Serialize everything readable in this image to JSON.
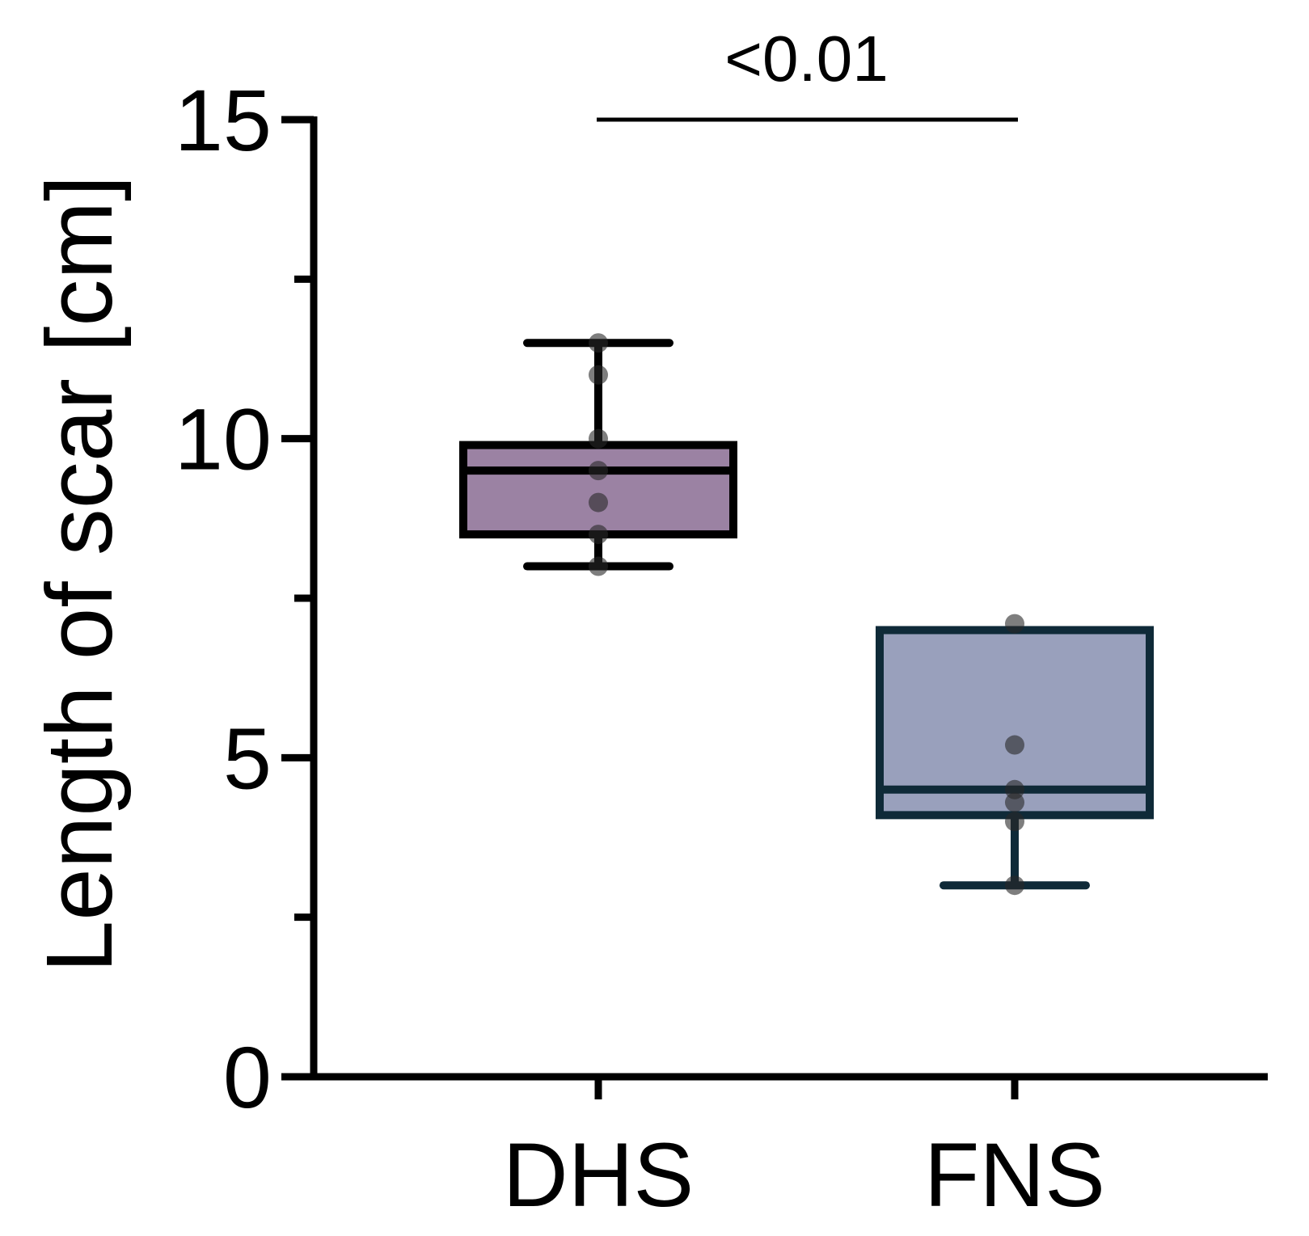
{
  "chart_data": {
    "type": "box",
    "ylabel": "Length of scar [cm]",
    "xlabel": "",
    "ylim": [
      0,
      15
    ],
    "y_ticks": [
      0,
      5,
      10,
      15
    ],
    "y_minor_ticks": [
      2.5,
      7.5,
      12.5
    ],
    "categories": [
      "DHS",
      "FNS"
    ],
    "groups": [
      {
        "label": "DHS",
        "fill": "#9b82a3",
        "stroke": "#000000",
        "whisker_low": 8,
        "q1": 8.5,
        "median": 9.5,
        "q3": 9.9,
        "whisker_high": 11.5,
        "points": [
          11.5,
          11,
          10,
          9.5,
          9,
          8.5,
          8
        ]
      },
      {
        "label": "FNS",
        "fill": "#99a0bc",
        "stroke": "#0f2a38",
        "whisker_low": 3,
        "q1": 4.1,
        "median": 4.5,
        "q3": 7,
        "whisker_high": 7,
        "points": [
          7.1,
          5.2,
          4.5,
          4.3,
          4,
          3
        ]
      }
    ],
    "annotation": {
      "text": "<0.01",
      "from": "DHS",
      "to": "FNS",
      "y": 15
    },
    "grid": false,
    "legend": "none"
  }
}
